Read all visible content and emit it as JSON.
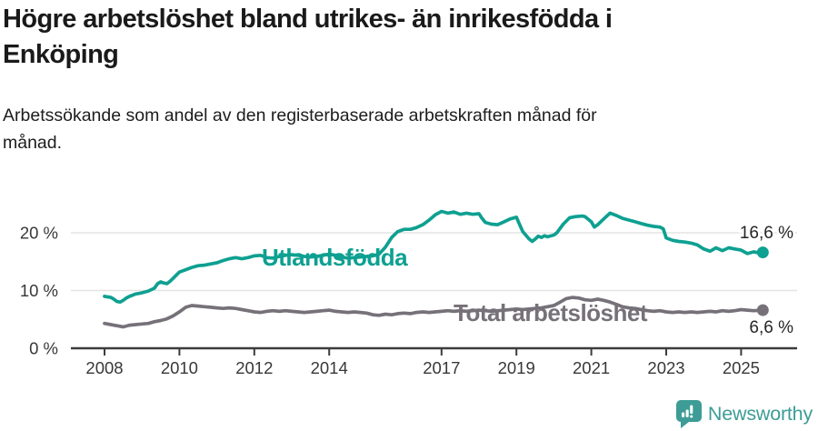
{
  "header": {
    "title_lines": [
      "Högre arbetslöshet bland utrikes- än inrikesfödda i",
      "Enköping"
    ],
    "subtitle_lines": [
      "Arbetssökande som andel av den registerbaserade arbetskraften månad för",
      "månad."
    ]
  },
  "branding": {
    "logo_text": "Newsworthy",
    "logo_color": "#3d9c96"
  },
  "colors": {
    "background": "#ffffff",
    "title_text": "#1a1a1a",
    "axis": "#3c3c3c",
    "tick_label": "#383838",
    "grid": "#e3e3e3",
    "end_label_text": "#262626",
    "series_teal": "#0ea091",
    "series_gray": "#767179"
  },
  "chart_data": {
    "type": "line",
    "title": "Högre arbetslöshet bland utrikes- än inrikesfödda i Enköping",
    "subtitle": "Arbetssökande som andel av den registerbaserade arbetskraften månad för månad.",
    "xlabel": "",
    "ylabel": "",
    "grid": "horizontal",
    "legend_position": "inline-labels",
    "xlim": [
      2008,
      2025.7
    ],
    "ylim": [
      0,
      25
    ],
    "x_ticks": [
      2008,
      2010,
      2012,
      2014,
      2017,
      2019,
      2021,
      2023,
      2025
    ],
    "y_ticks": [
      {
        "value": 0,
        "label": "0 %"
      },
      {
        "value": 10,
        "label": "10 %"
      },
      {
        "value": 20,
        "label": "20 %"
      }
    ],
    "series": [
      {
        "key": "utlandsfodda",
        "name": "Utlandsfödda",
        "color": "#0ea091",
        "end_value": 16.6,
        "end_label": "16,6 %",
        "points": [
          [
            2008.0,
            9.0
          ],
          [
            2008.08,
            8.9
          ],
          [
            2008.17,
            8.8
          ],
          [
            2008.25,
            8.5
          ],
          [
            2008.33,
            8.1
          ],
          [
            2008.42,
            8.0
          ],
          [
            2008.5,
            8.3
          ],
          [
            2008.58,
            8.7
          ],
          [
            2008.67,
            9.0
          ],
          [
            2008.75,
            9.2
          ],
          [
            2008.83,
            9.4
          ],
          [
            2008.92,
            9.5
          ],
          [
            2009.0,
            9.6
          ],
          [
            2009.17,
            9.9
          ],
          [
            2009.33,
            10.4
          ],
          [
            2009.42,
            11.2
          ],
          [
            2009.5,
            11.5
          ],
          [
            2009.58,
            11.3
          ],
          [
            2009.67,
            11.2
          ],
          [
            2009.75,
            11.6
          ],
          [
            2009.83,
            12.1
          ],
          [
            2009.92,
            12.7
          ],
          [
            2010.0,
            13.2
          ],
          [
            2010.17,
            13.6
          ],
          [
            2010.33,
            14.0
          ],
          [
            2010.5,
            14.3
          ],
          [
            2010.67,
            14.4
          ],
          [
            2010.83,
            14.6
          ],
          [
            2011.0,
            14.8
          ],
          [
            2011.17,
            15.2
          ],
          [
            2011.33,
            15.5
          ],
          [
            2011.5,
            15.7
          ],
          [
            2011.67,
            15.5
          ],
          [
            2011.83,
            15.7
          ],
          [
            2012.0,
            16.0
          ],
          [
            2012.17,
            16.1
          ],
          [
            2012.33,
            15.7
          ],
          [
            2012.5,
            15.6
          ],
          [
            2012.67,
            15.9
          ],
          [
            2012.83,
            16.1
          ],
          [
            2013.0,
            16.2
          ],
          [
            2013.17,
            16.1
          ],
          [
            2013.33,
            15.9
          ],
          [
            2013.5,
            15.8
          ],
          [
            2013.67,
            15.9
          ],
          [
            2013.83,
            16.1
          ],
          [
            2014.0,
            16.3
          ],
          [
            2014.17,
            16.1
          ],
          [
            2014.33,
            15.8
          ],
          [
            2014.5,
            15.6
          ],
          [
            2014.67,
            15.7
          ],
          [
            2014.83,
            15.8
          ],
          [
            2015.0,
            15.9
          ],
          [
            2015.17,
            16.0
          ],
          [
            2015.33,
            16.3
          ],
          [
            2015.5,
            17.5
          ],
          [
            2015.67,
            19.2
          ],
          [
            2015.83,
            20.2
          ],
          [
            2016.0,
            20.6
          ],
          [
            2016.17,
            20.6
          ],
          [
            2016.33,
            20.9
          ],
          [
            2016.5,
            21.4
          ],
          [
            2016.67,
            22.2
          ],
          [
            2016.83,
            23.1
          ],
          [
            2017.0,
            23.7
          ],
          [
            2017.17,
            23.4
          ],
          [
            2017.33,
            23.6
          ],
          [
            2017.5,
            23.2
          ],
          [
            2017.67,
            23.4
          ],
          [
            2017.83,
            23.2
          ],
          [
            2018.0,
            23.3
          ],
          [
            2018.08,
            22.5
          ],
          [
            2018.17,
            21.8
          ],
          [
            2018.33,
            21.5
          ],
          [
            2018.5,
            21.4
          ],
          [
            2018.67,
            21.9
          ],
          [
            2018.83,
            22.4
          ],
          [
            2019.0,
            22.7
          ],
          [
            2019.08,
            21.5
          ],
          [
            2019.17,
            20.2
          ],
          [
            2019.33,
            19.0
          ],
          [
            2019.42,
            18.5
          ],
          [
            2019.5,
            18.9
          ],
          [
            2019.58,
            19.4
          ],
          [
            2019.67,
            19.2
          ],
          [
            2019.75,
            19.5
          ],
          [
            2019.83,
            19.3
          ],
          [
            2020.0,
            19.6
          ],
          [
            2020.08,
            20.0
          ],
          [
            2020.25,
            21.5
          ],
          [
            2020.42,
            22.6
          ],
          [
            2020.58,
            22.8
          ],
          [
            2020.75,
            22.9
          ],
          [
            2020.83,
            22.8
          ],
          [
            2021.0,
            21.9
          ],
          [
            2021.08,
            21.0
          ],
          [
            2021.17,
            21.4
          ],
          [
            2021.33,
            22.4
          ],
          [
            2021.5,
            23.4
          ],
          [
            2021.67,
            23.0
          ],
          [
            2021.83,
            22.5
          ],
          [
            2022.0,
            22.2
          ],
          [
            2022.17,
            21.9
          ],
          [
            2022.33,
            21.6
          ],
          [
            2022.5,
            21.3
          ],
          [
            2022.67,
            21.1
          ],
          [
            2022.83,
            21.0
          ],
          [
            2022.92,
            20.7
          ],
          [
            2023.0,
            19.1
          ],
          [
            2023.17,
            18.7
          ],
          [
            2023.33,
            18.5
          ],
          [
            2023.5,
            18.4
          ],
          [
            2023.67,
            18.2
          ],
          [
            2023.83,
            17.9
          ],
          [
            2024.0,
            17.2
          ],
          [
            2024.17,
            16.8
          ],
          [
            2024.33,
            17.4
          ],
          [
            2024.5,
            16.9
          ],
          [
            2024.67,
            17.4
          ],
          [
            2024.83,
            17.2
          ],
          [
            2025.0,
            17.0
          ],
          [
            2025.17,
            16.4
          ],
          [
            2025.33,
            16.7
          ],
          [
            2025.5,
            16.5
          ],
          [
            2025.58,
            16.6
          ]
        ]
      },
      {
        "key": "total",
        "name": "Total arbetslöshet",
        "color": "#767179",
        "end_value": 6.6,
        "end_label": "6,6 %",
        "points": [
          [
            2008.0,
            4.3
          ],
          [
            2008.17,
            4.1
          ],
          [
            2008.33,
            3.9
          ],
          [
            2008.5,
            3.7
          ],
          [
            2008.67,
            4.0
          ],
          [
            2008.83,
            4.1
          ],
          [
            2009.0,
            4.2
          ],
          [
            2009.17,
            4.3
          ],
          [
            2009.33,
            4.6
          ],
          [
            2009.5,
            4.8
          ],
          [
            2009.67,
            5.1
          ],
          [
            2009.83,
            5.6
          ],
          [
            2010.0,
            6.3
          ],
          [
            2010.17,
            7.1
          ],
          [
            2010.33,
            7.4
          ],
          [
            2010.5,
            7.3
          ],
          [
            2010.67,
            7.2
          ],
          [
            2010.83,
            7.1
          ],
          [
            2011.0,
            7.0
          ],
          [
            2011.17,
            6.9
          ],
          [
            2011.33,
            7.0
          ],
          [
            2011.5,
            6.9
          ],
          [
            2011.67,
            6.7
          ],
          [
            2011.83,
            6.5
          ],
          [
            2012.0,
            6.3
          ],
          [
            2012.17,
            6.2
          ],
          [
            2012.33,
            6.4
          ],
          [
            2012.5,
            6.5
          ],
          [
            2012.67,
            6.4
          ],
          [
            2012.83,
            6.5
          ],
          [
            2013.0,
            6.4
          ],
          [
            2013.17,
            6.3
          ],
          [
            2013.33,
            6.2
          ],
          [
            2013.5,
            6.3
          ],
          [
            2013.67,
            6.4
          ],
          [
            2013.83,
            6.5
          ],
          [
            2014.0,
            6.6
          ],
          [
            2014.17,
            6.4
          ],
          [
            2014.33,
            6.3
          ],
          [
            2014.5,
            6.2
          ],
          [
            2014.67,
            6.3
          ],
          [
            2014.83,
            6.2
          ],
          [
            2015.0,
            6.1
          ],
          [
            2015.17,
            5.8
          ],
          [
            2015.33,
            5.7
          ],
          [
            2015.5,
            5.9
          ],
          [
            2015.67,
            5.8
          ],
          [
            2015.83,
            6.0
          ],
          [
            2016.0,
            6.1
          ],
          [
            2016.17,
            6.0
          ],
          [
            2016.33,
            6.2
          ],
          [
            2016.5,
            6.3
          ],
          [
            2016.67,
            6.2
          ],
          [
            2016.83,
            6.3
          ],
          [
            2017.0,
            6.4
          ],
          [
            2017.17,
            6.5
          ],
          [
            2017.33,
            6.4
          ],
          [
            2017.5,
            6.5
          ],
          [
            2017.67,
            6.4
          ],
          [
            2017.83,
            6.5
          ],
          [
            2018.0,
            6.6
          ],
          [
            2018.17,
            6.5
          ],
          [
            2018.33,
            6.4
          ],
          [
            2018.5,
            6.5
          ],
          [
            2018.67,
            6.6
          ],
          [
            2018.83,
            6.7
          ],
          [
            2019.0,
            6.8
          ],
          [
            2019.17,
            6.7
          ],
          [
            2019.33,
            6.8
          ],
          [
            2019.5,
            6.9
          ],
          [
            2019.67,
            7.0
          ],
          [
            2019.83,
            7.2
          ],
          [
            2020.0,
            7.4
          ],
          [
            2020.17,
            8.0
          ],
          [
            2020.33,
            8.6
          ],
          [
            2020.5,
            8.8
          ],
          [
            2020.67,
            8.7
          ],
          [
            2020.83,
            8.4
          ],
          [
            2021.0,
            8.3
          ],
          [
            2021.17,
            8.5
          ],
          [
            2021.33,
            8.3
          ],
          [
            2021.5,
            8.0
          ],
          [
            2021.67,
            7.6
          ],
          [
            2021.83,
            7.2
          ],
          [
            2022.0,
            7.0
          ],
          [
            2022.17,
            6.9
          ],
          [
            2022.33,
            6.7
          ],
          [
            2022.5,
            6.5
          ],
          [
            2022.67,
            6.4
          ],
          [
            2022.83,
            6.5
          ],
          [
            2023.0,
            6.3
          ],
          [
            2023.17,
            6.2
          ],
          [
            2023.33,
            6.3
          ],
          [
            2023.5,
            6.2
          ],
          [
            2023.67,
            6.3
          ],
          [
            2023.83,
            6.2
          ],
          [
            2024.0,
            6.3
          ],
          [
            2024.17,
            6.4
          ],
          [
            2024.33,
            6.3
          ],
          [
            2024.5,
            6.5
          ],
          [
            2024.67,
            6.4
          ],
          [
            2024.83,
            6.5
          ],
          [
            2025.0,
            6.7
          ],
          [
            2025.17,
            6.6
          ],
          [
            2025.33,
            6.5
          ],
          [
            2025.58,
            6.6
          ]
        ]
      }
    ]
  }
}
